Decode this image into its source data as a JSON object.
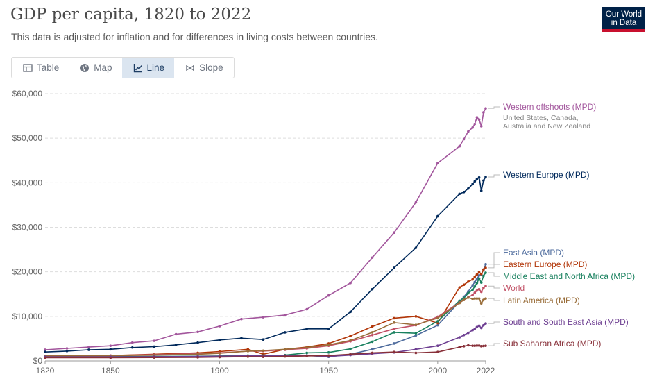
{
  "header": {
    "title": "GDP per capita, 1820 to 2022",
    "subtitle": "This data is adjusted for inflation and for differences in living costs between countries.",
    "logo_line1": "Our World",
    "logo_line2": "in Data"
  },
  "tabs": [
    {
      "label": "Table",
      "icon": "table-icon",
      "active": false
    },
    {
      "label": "Map",
      "icon": "globe-icon",
      "active": false
    },
    {
      "label": "Line",
      "icon": "line-chart-icon",
      "active": true
    },
    {
      "label": "Slope",
      "icon": "slope-icon",
      "active": false
    }
  ],
  "chart_data": {
    "type": "line",
    "title": "GDP per capita, 1820 to 2022",
    "xlabel": "",
    "ylabel": "",
    "xlim": [
      1820,
      2022
    ],
    "ylim": [
      0,
      60000
    ],
    "x_ticks": [
      1820,
      1850,
      1900,
      1950,
      2000,
      2022
    ],
    "y_ticks": [
      0,
      10000,
      20000,
      30000,
      40000,
      50000,
      60000
    ],
    "y_tick_labels": [
      "$0",
      "$10,000",
      "$20,000",
      "$30,000",
      "$40,000",
      "$50,000",
      "$60,000"
    ],
    "grid": "horizontal dashed",
    "series": [
      {
        "name": "Western offshoots (MPD)",
        "note": "United States, Canada, Australia and New Zealand",
        "color": "#a2559c",
        "points": [
          [
            1820,
            2500
          ],
          [
            1830,
            2800
          ],
          [
            1840,
            3100
          ],
          [
            1850,
            3400
          ],
          [
            1860,
            4100
          ],
          [
            1870,
            4500
          ],
          [
            1880,
            6000
          ],
          [
            1890,
            6500
          ],
          [
            1900,
            7800
          ],
          [
            1910,
            9400
          ],
          [
            1920,
            9800
          ],
          [
            1930,
            10300
          ],
          [
            1940,
            11600
          ],
          [
            1950,
            14700
          ],
          [
            1960,
            17500
          ],
          [
            1970,
            23200
          ],
          [
            1980,
            28800
          ],
          [
            1990,
            35600
          ],
          [
            2000,
            44400
          ],
          [
            2010,
            48200
          ],
          [
            2012,
            49800
          ],
          [
            2014,
            51500
          ],
          [
            2016,
            52400
          ],
          [
            2017,
            53200
          ],
          [
            2018,
            54700
          ],
          [
            2019,
            54200
          ],
          [
            2020,
            52700
          ],
          [
            2021,
            55800
          ],
          [
            2022,
            56700
          ]
        ]
      },
      {
        "name": "Western Europe (MPD)",
        "color": "#00295b",
        "points": [
          [
            1820,
            2000
          ],
          [
            1830,
            2200
          ],
          [
            1840,
            2500
          ],
          [
            1850,
            2600
          ],
          [
            1860,
            3000
          ],
          [
            1870,
            3200
          ],
          [
            1880,
            3600
          ],
          [
            1890,
            4100
          ],
          [
            1900,
            4700
          ],
          [
            1910,
            5100
          ],
          [
            1920,
            4800
          ],
          [
            1930,
            6400
          ],
          [
            1940,
            7200
          ],
          [
            1950,
            7200
          ],
          [
            1960,
            11000
          ],
          [
            1970,
            16100
          ],
          [
            1980,
            20900
          ],
          [
            1990,
            25400
          ],
          [
            2000,
            32500
          ],
          [
            2010,
            37500
          ],
          [
            2012,
            37900
          ],
          [
            2014,
            38700
          ],
          [
            2016,
            39700
          ],
          [
            2017,
            40300
          ],
          [
            2018,
            40800
          ],
          [
            2019,
            41200
          ],
          [
            2020,
            38200
          ],
          [
            2021,
            40500
          ],
          [
            2022,
            41300
          ]
        ]
      },
      {
        "name": "East Asia (MPD)",
        "color": "#4c6a9c",
        "points": [
          [
            1820,
            800
          ],
          [
            1850,
            850
          ],
          [
            1870,
            850
          ],
          [
            1890,
            900
          ],
          [
            1900,
            950
          ],
          [
            1913,
            1050
          ],
          [
            1920,
            1000
          ],
          [
            1930,
            1100
          ],
          [
            1940,
            1200
          ],
          [
            1950,
            900
          ],
          [
            1960,
            1500
          ],
          [
            1970,
            2600
          ],
          [
            1980,
            3900
          ],
          [
            1990,
            5700
          ],
          [
            2000,
            8000
          ],
          [
            2010,
            13300
          ],
          [
            2012,
            14400
          ],
          [
            2014,
            15600
          ],
          [
            2016,
            17000
          ],
          [
            2017,
            17700
          ],
          [
            2018,
            18400
          ],
          [
            2019,
            19200
          ],
          [
            2020,
            19400
          ],
          [
            2021,
            20500
          ],
          [
            2022,
            21700
          ]
        ]
      },
      {
        "name": "Eastern Europe (MPD)",
        "color": "#b13507",
        "points": [
          [
            1820,
            1100
          ],
          [
            1850,
            1200
          ],
          [
            1870,
            1500
          ],
          [
            1890,
            1800
          ],
          [
            1900,
            2100
          ],
          [
            1913,
            2600
          ],
          [
            1920,
            1500
          ],
          [
            1930,
            2600
          ],
          [
            1940,
            3100
          ],
          [
            1950,
            3900
          ],
          [
            1960,
            5600
          ],
          [
            1970,
            7700
          ],
          [
            1980,
            9600
          ],
          [
            1990,
            10000
          ],
          [
            2000,
            8500
          ],
          [
            2010,
            16500
          ],
          [
            2012,
            17100
          ],
          [
            2014,
            17800
          ],
          [
            2016,
            18300
          ],
          [
            2017,
            18900
          ],
          [
            2018,
            19400
          ],
          [
            2019,
            19900
          ],
          [
            2020,
            19500
          ],
          [
            2021,
            20500
          ],
          [
            2022,
            20900
          ]
        ]
      },
      {
        "name": "Middle East and North Africa (MPD)",
        "color": "#18805e",
        "points": [
          [
            1820,
            900
          ],
          [
            1850,
            950
          ],
          [
            1870,
            1000
          ],
          [
            1890,
            1050
          ],
          [
            1900,
            1100
          ],
          [
            1913,
            1200
          ],
          [
            1920,
            1200
          ],
          [
            1930,
            1300
          ],
          [
            1940,
            1800
          ],
          [
            1950,
            1900
          ],
          [
            1960,
            2700
          ],
          [
            1970,
            4300
          ],
          [
            1980,
            6400
          ],
          [
            1990,
            6200
          ],
          [
            2000,
            8900
          ],
          [
            2010,
            13500
          ],
          [
            2012,
            14100
          ],
          [
            2014,
            15200
          ],
          [
            2016,
            16000
          ],
          [
            2017,
            16700
          ],
          [
            2018,
            17500
          ],
          [
            2019,
            18500
          ],
          [
            2020,
            17600
          ],
          [
            2021,
            19100
          ],
          [
            2022,
            19800
          ]
        ]
      },
      {
        "name": "World",
        "color": "#c15065",
        "points": [
          [
            1820,
            1100
          ],
          [
            1850,
            1200
          ],
          [
            1870,
            1400
          ],
          [
            1890,
            1600
          ],
          [
            1900,
            1800
          ],
          [
            1913,
            2200
          ],
          [
            1920,
            2200
          ],
          [
            1930,
            2500
          ],
          [
            1940,
            2800
          ],
          [
            1950,
            3400
          ],
          [
            1960,
            4400
          ],
          [
            1970,
            5800
          ],
          [
            1980,
            7200
          ],
          [
            1990,
            8000
          ],
          [
            2000,
            9900
          ],
          [
            2010,
            13100
          ],
          [
            2012,
            13700
          ],
          [
            2014,
            14300
          ],
          [
            2016,
            14800
          ],
          [
            2017,
            15300
          ],
          [
            2018,
            15800
          ],
          [
            2019,
            16100
          ],
          [
            2020,
            15500
          ],
          [
            2021,
            16400
          ],
          [
            2022,
            16800
          ]
        ]
      },
      {
        "name": "Latin America (MPD)",
        "color": "#996d39",
        "points": [
          [
            1820,
            1100
          ],
          [
            1850,
            1150
          ],
          [
            1870,
            1300
          ],
          [
            1890,
            1500
          ],
          [
            1900,
            1700
          ],
          [
            1913,
            2200
          ],
          [
            1920,
            2300
          ],
          [
            1930,
            2600
          ],
          [
            1940,
            3000
          ],
          [
            1950,
            3600
          ],
          [
            1960,
            4600
          ],
          [
            1970,
            6400
          ],
          [
            1980,
            8600
          ],
          [
            1990,
            8100
          ],
          [
            2000,
            9600
          ],
          [
            2010,
            13000
          ],
          [
            2012,
            13700
          ],
          [
            2014,
            14200
          ],
          [
            2016,
            13900
          ],
          [
            2017,
            14000
          ],
          [
            2018,
            14000
          ],
          [
            2019,
            14000
          ],
          [
            2020,
            12900
          ],
          [
            2021,
            13700
          ],
          [
            2022,
            14000
          ]
        ]
      },
      {
        "name": "South and South East Asia (MPD)",
        "color": "#6d3e91",
        "points": [
          [
            1820,
            900
          ],
          [
            1850,
            900
          ],
          [
            1870,
            950
          ],
          [
            1890,
            1000
          ],
          [
            1900,
            1050
          ],
          [
            1913,
            1150
          ],
          [
            1920,
            1100
          ],
          [
            1930,
            1200
          ],
          [
            1940,
            1200
          ],
          [
            1950,
            1000
          ],
          [
            1960,
            1300
          ],
          [
            1970,
            1600
          ],
          [
            1980,
            1900
          ],
          [
            1990,
            2600
          ],
          [
            2000,
            3400
          ],
          [
            2010,
            5300
          ],
          [
            2012,
            5800
          ],
          [
            2014,
            6300
          ],
          [
            2016,
            6900
          ],
          [
            2017,
            7200
          ],
          [
            2018,
            7600
          ],
          [
            2019,
            7900
          ],
          [
            2020,
            7400
          ],
          [
            2021,
            8000
          ],
          [
            2022,
            8400
          ]
        ]
      },
      {
        "name": "Sub Saharan Africa (MPD)",
        "color": "#883039",
        "points": [
          [
            1820,
            700
          ],
          [
            1850,
            700
          ],
          [
            1870,
            750
          ],
          [
            1890,
            800
          ],
          [
            1900,
            850
          ],
          [
            1913,
            950
          ],
          [
            1920,
            900
          ],
          [
            1930,
            1000
          ],
          [
            1940,
            1100
          ],
          [
            1950,
            1200
          ],
          [
            1960,
            1500
          ],
          [
            1970,
            1800
          ],
          [
            1980,
            2000
          ],
          [
            1990,
            1800
          ],
          [
            2000,
            2000
          ],
          [
            2010,
            3100
          ],
          [
            2012,
            3300
          ],
          [
            2014,
            3500
          ],
          [
            2016,
            3400
          ],
          [
            2017,
            3400
          ],
          [
            2018,
            3450
          ],
          [
            2019,
            3450
          ],
          [
            2020,
            3300
          ],
          [
            2021,
            3350
          ],
          [
            2022,
            3400
          ]
        ]
      }
    ]
  }
}
